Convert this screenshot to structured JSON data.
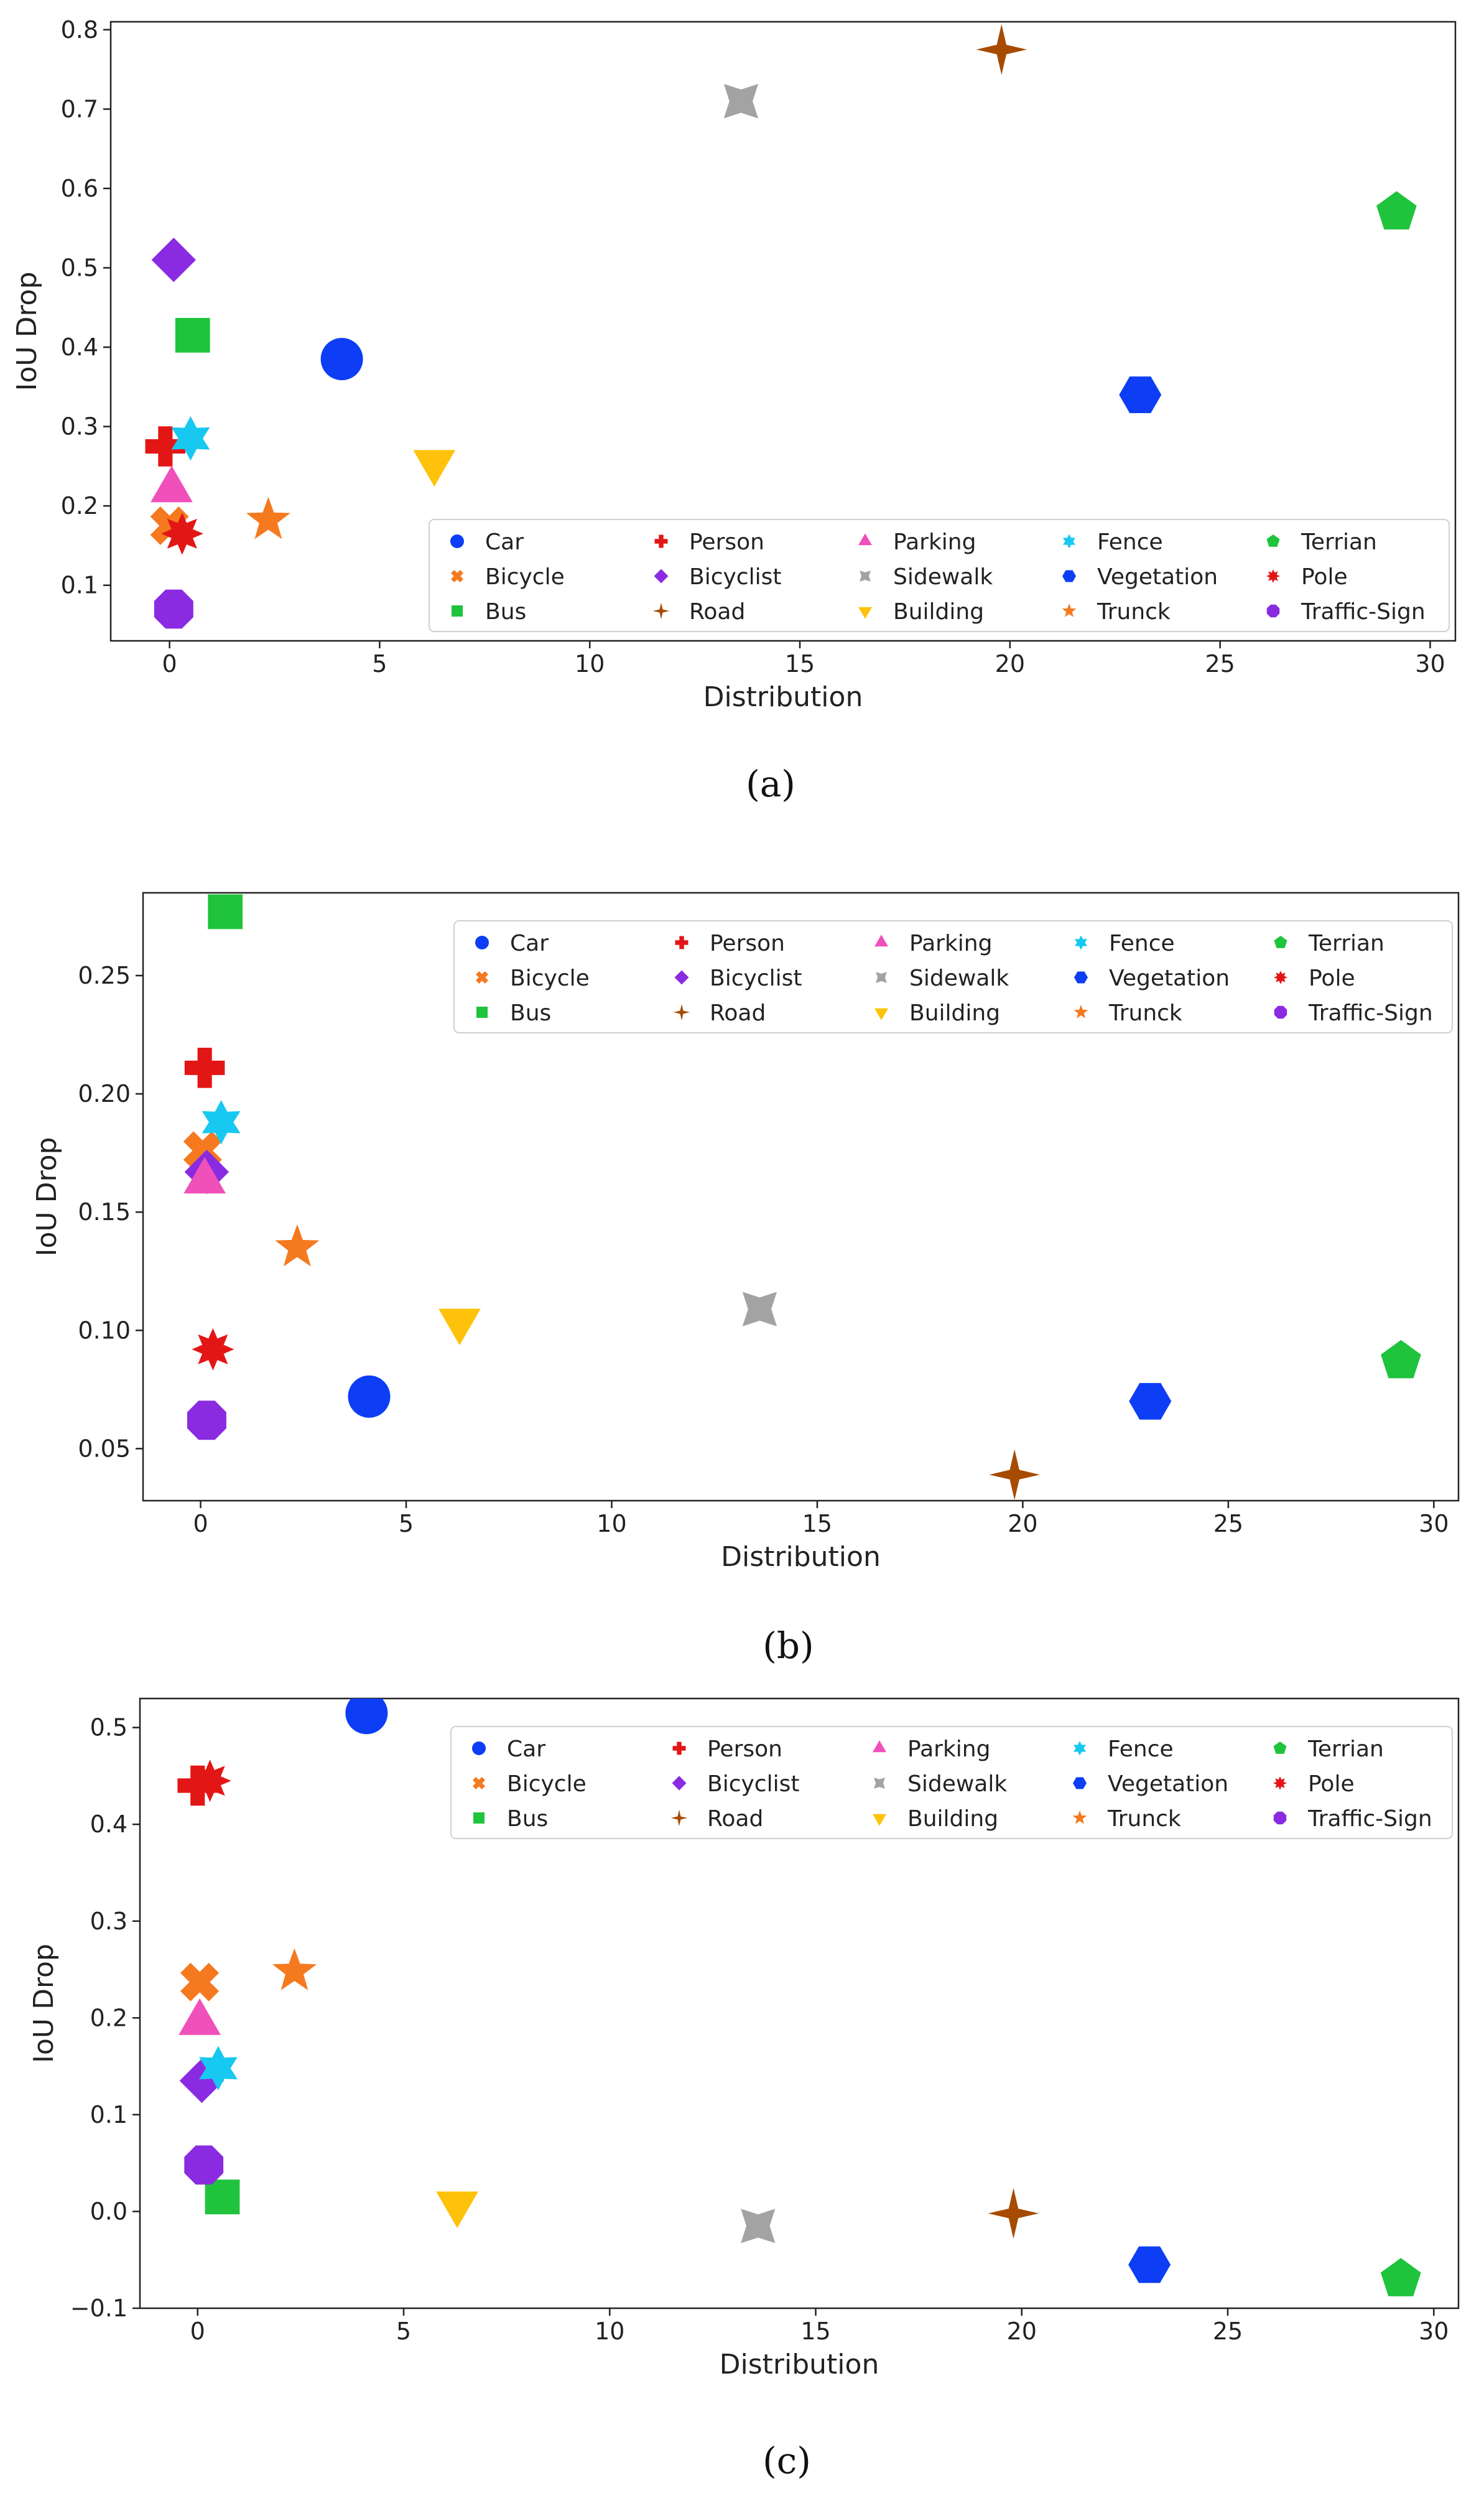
{
  "chart_data": [
    {
      "type": "scatter",
      "caption": "(a)",
      "xlabel": "Distribution",
      "ylabel": "IoU Drop",
      "xlim": [
        -1.4,
        30.6
      ],
      "ylim": [
        0.03,
        0.81
      ],
      "xticks": [
        0,
        5,
        10,
        15,
        20,
        25,
        30
      ],
      "yticks": [
        0.1,
        0.2,
        0.3,
        0.4,
        0.5,
        0.6,
        0.7,
        0.8
      ],
      "ytick_labels": [
        "0.1",
        "0.2",
        "0.3",
        "0.4",
        "0.5",
        "0.6",
        "0.7",
        "0.8"
      ],
      "legend": "bottom-right",
      "points": [
        {
          "name": "Car",
          "x": 4.1,
          "y": 0.385
        },
        {
          "name": "Bicycle",
          "x": 0.0,
          "y": 0.175
        },
        {
          "name": "Bus",
          "x": 0.55,
          "y": 0.415
        },
        {
          "name": "Person",
          "x": -0.1,
          "y": 0.275
        },
        {
          "name": "Bicyclist",
          "x": 0.1,
          "y": 0.51
        },
        {
          "name": "Road",
          "x": 19.8,
          "y": 0.775
        },
        {
          "name": "Parking",
          "x": 0.05,
          "y": 0.22
        },
        {
          "name": "Sidewalk",
          "x": 13.6,
          "y": 0.71
        },
        {
          "name": "Building",
          "x": 6.3,
          "y": 0.255
        },
        {
          "name": "Fence",
          "x": 0.5,
          "y": 0.285
        },
        {
          "name": "Vegetation",
          "x": 23.1,
          "y": 0.34
        },
        {
          "name": "Trunck",
          "x": 2.35,
          "y": 0.182
        },
        {
          "name": "Terrian",
          "x": 29.2,
          "y": 0.57
        },
        {
          "name": "Pole",
          "x": 0.3,
          "y": 0.165
        },
        {
          "name": "Traffic-Sign",
          "x": 0.1,
          "y": 0.07
        }
      ]
    },
    {
      "type": "scatter",
      "caption": "(b)",
      "xlabel": "Distribution",
      "ylabel": "IoU Drop",
      "xlim": [
        -1.4,
        30.6
      ],
      "ylim": [
        0.028,
        0.285
      ],
      "xticks": [
        0,
        5,
        10,
        15,
        20,
        25,
        30
      ],
      "yticks": [
        0.05,
        0.1,
        0.15,
        0.2,
        0.25
      ],
      "ytick_labels": [
        "0.05",
        "0.10",
        "0.15",
        "0.20",
        "0.25"
      ],
      "legend": "top-right",
      "points": [
        {
          "name": "Car",
          "x": 4.1,
          "y": 0.072
        },
        {
          "name": "Bicycle",
          "x": 0.05,
          "y": 0.176
        },
        {
          "name": "Bus",
          "x": 0.6,
          "y": 0.277
        },
        {
          "name": "Person",
          "x": 0.1,
          "y": 0.211
        },
        {
          "name": "Bicyclist",
          "x": 0.15,
          "y": 0.167
        },
        {
          "name": "Road",
          "x": 19.8,
          "y": 0.039
        },
        {
          "name": "Parking",
          "x": 0.1,
          "y": 0.163
        },
        {
          "name": "Sidewalk",
          "x": 13.6,
          "y": 0.109
        },
        {
          "name": "Building",
          "x": 6.3,
          "y": 0.104
        },
        {
          "name": "Fence",
          "x": 0.5,
          "y": 0.188
        },
        {
          "name": "Vegetation",
          "x": 23.1,
          "y": 0.07
        },
        {
          "name": "Trunck",
          "x": 2.35,
          "y": 0.135
        },
        {
          "name": "Terrian",
          "x": 29.2,
          "y": 0.087
        },
        {
          "name": "Pole",
          "x": 0.3,
          "y": 0.092
        },
        {
          "name": "Traffic-Sign",
          "x": 0.15,
          "y": 0.062
        }
      ]
    },
    {
      "type": "scatter",
      "caption": "(c)",
      "xlabel": "Distribution",
      "ylabel": "IoU Drop",
      "xlim": [
        -1.4,
        30.6
      ],
      "ylim": [
        -0.1,
        0.53
      ],
      "xticks": [
        0,
        5,
        10,
        15,
        20,
        25,
        30
      ],
      "yticks": [
        -0.1,
        0.0,
        0.1,
        0.2,
        0.3,
        0.4,
        0.5
      ],
      "ytick_labels": [
        "−0.1",
        "0.0",
        "0.1",
        "0.2",
        "0.3",
        "0.4",
        "0.5"
      ],
      "legend": "top-right",
      "points": [
        {
          "name": "Car",
          "x": 4.1,
          "y": 0.515
        },
        {
          "name": "Bicycle",
          "x": 0.05,
          "y": 0.237
        },
        {
          "name": "Bus",
          "x": 0.6,
          "y": 0.015
        },
        {
          "name": "Person",
          "x": 0.0,
          "y": 0.44
        },
        {
          "name": "Bicyclist",
          "x": 0.1,
          "y": 0.135
        },
        {
          "name": "Road",
          "x": 19.8,
          "y": -0.002
        },
        {
          "name": "Parking",
          "x": 0.05,
          "y": 0.195
        },
        {
          "name": "Sidewalk",
          "x": 13.6,
          "y": -0.015
        },
        {
          "name": "Building",
          "x": 6.3,
          "y": 0.008
        },
        {
          "name": "Fence",
          "x": 0.5,
          "y": 0.148
        },
        {
          "name": "Vegetation",
          "x": 23.1,
          "y": -0.055
        },
        {
          "name": "Trunck",
          "x": 2.35,
          "y": 0.248
        },
        {
          "name": "Terrian",
          "x": 29.2,
          "y": -0.07
        },
        {
          "name": "Pole",
          "x": 0.3,
          "y": 0.445
        },
        {
          "name": "Traffic-Sign",
          "x": 0.15,
          "y": 0.048
        }
      ]
    }
  ],
  "series_styles": [
    {
      "name": "Car",
      "marker": "circle",
      "color": "#0d3ef5"
    },
    {
      "name": "Bicycle",
      "marker": "x",
      "color": "#f5791f"
    },
    {
      "name": "Bus",
      "marker": "square",
      "color": "#1fc43c"
    },
    {
      "name": "Person",
      "marker": "plus",
      "color": "#e31616"
    },
    {
      "name": "Bicyclist",
      "marker": "diamond",
      "color": "#8a2be2"
    },
    {
      "name": "Road",
      "marker": "star4",
      "color": "#a64b00"
    },
    {
      "name": "Parking",
      "marker": "triangle-up",
      "color": "#f050b9"
    },
    {
      "name": "Sidewalk",
      "marker": "concave4",
      "color": "#a3a3a3"
    },
    {
      "name": "Building",
      "marker": "triangle-down",
      "color": "#ffc20a"
    },
    {
      "name": "Fence",
      "marker": "star6",
      "color": "#17c8f0"
    },
    {
      "name": "Vegetation",
      "marker": "hexagon",
      "color": "#0d3ef5"
    },
    {
      "name": "Trunck",
      "marker": "star5",
      "color": "#f5791f"
    },
    {
      "name": "Terrian",
      "marker": "pentagon",
      "color": "#1fc43c"
    },
    {
      "name": "Pole",
      "marker": "star8",
      "color": "#e31616"
    },
    {
      "name": "Traffic-Sign",
      "marker": "octagon",
      "color": "#8a2be2"
    }
  ]
}
